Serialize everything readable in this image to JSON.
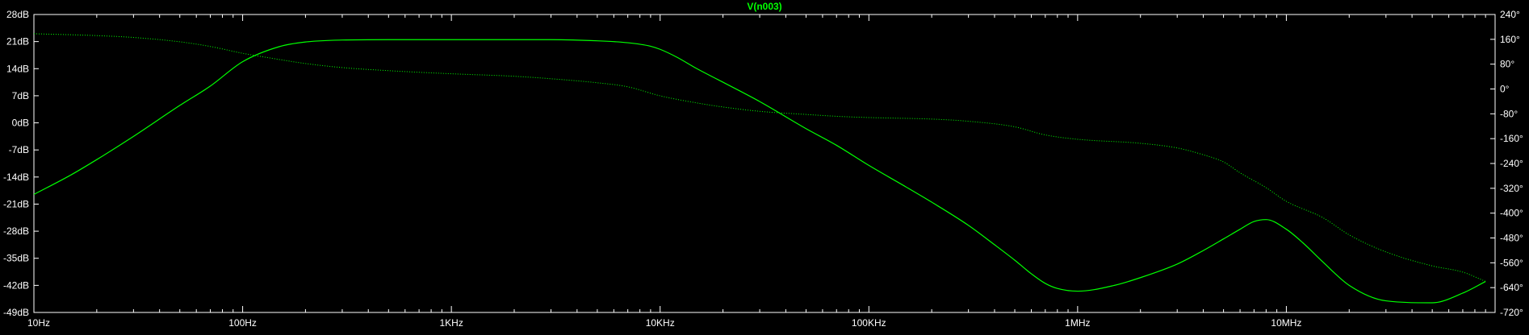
{
  "chart_data": {
    "type": "line",
    "title": "V(n003)",
    "x_scale": "log",
    "x_range_hz": [
      10,
      100000000
    ],
    "x_ticks": [
      {
        "value": 10,
        "label": "10Hz"
      },
      {
        "value": 100,
        "label": "100Hz"
      },
      {
        "value": 1000,
        "label": "1KHz"
      },
      {
        "value": 10000,
        "label": "10KHz"
      },
      {
        "value": 100000,
        "label": "100KHz"
      },
      {
        "value": 1000000,
        "label": "1MHz"
      },
      {
        "value": 10000000,
        "label": "10MHz"
      }
    ],
    "y_left": {
      "unit": "dB",
      "range": [
        -49,
        28
      ],
      "ticks": [
        {
          "value": 28,
          "label": "28dB"
        },
        {
          "value": 21,
          "label": "21dB"
        },
        {
          "value": 14,
          "label": "14dB"
        },
        {
          "value": 7,
          "label": "7dB"
        },
        {
          "value": 0,
          "label": "0dB"
        },
        {
          "value": -7,
          "label": "-7dB"
        },
        {
          "value": -14,
          "label": "-14dB"
        },
        {
          "value": -21,
          "label": "-21dB"
        },
        {
          "value": -28,
          "label": "-28dB"
        },
        {
          "value": -35,
          "label": "-35dB"
        },
        {
          "value": -42,
          "label": "-42dB"
        },
        {
          "value": -49,
          "label": "-49dB"
        }
      ]
    },
    "y_right": {
      "unit": "degrees",
      "range": [
        -720,
        240
      ],
      "ticks": [
        {
          "value": 240,
          "label": "240°"
        },
        {
          "value": 160,
          "label": "160°"
        },
        {
          "value": 80,
          "label": "80°"
        },
        {
          "value": 0,
          "label": "0°"
        },
        {
          "value": -80,
          "label": "-80°"
        },
        {
          "value": -160,
          "label": "-160°"
        },
        {
          "value": -240,
          "label": "-240°"
        },
        {
          "value": -320,
          "label": "-320°"
        },
        {
          "value": -400,
          "label": "-400°"
        },
        {
          "value": -480,
          "label": "-480°"
        },
        {
          "value": -560,
          "label": "-560°"
        },
        {
          "value": -640,
          "label": "-640°"
        },
        {
          "value": -720,
          "label": "-720°"
        }
      ]
    },
    "series": [
      {
        "style": "solid",
        "axis": "left",
        "x": [
          10,
          15,
          20,
          30,
          50,
          70,
          100,
          150,
          200,
          300,
          500,
          1000,
          2000,
          3000,
          5000,
          7000,
          9000,
          10000,
          12000,
          15000,
          20000,
          30000,
          50000,
          70000,
          100000,
          150000,
          200000,
          300000,
          400000,
          500000,
          600000,
          700000,
          800000,
          1000000,
          1500000,
          2000000,
          3000000,
          4000000,
          5000000,
          6000000,
          7000000,
          8000000,
          10000000,
          12000000,
          15000000,
          20000000,
          30000000,
          50000000,
          70000000,
          90000000
        ],
        "y": [
          -18.5,
          -13.5,
          -9.5,
          -3.5,
          4.5,
          9.5,
          15.8,
          19.7,
          20.9,
          21.4,
          21.5,
          21.5,
          21.5,
          21.5,
          21.2,
          20.7,
          19.8,
          19,
          17,
          14,
          10.5,
          5.5,
          -1.5,
          -5.8,
          -11,
          -16.5,
          -20.5,
          -26.5,
          -31.5,
          -35.5,
          -39,
          -41.5,
          -42.8,
          -43.5,
          -42,
          -40,
          -36.5,
          -33,
          -30,
          -27.5,
          -25.5,
          -25,
          -27.5,
          -31,
          -36,
          -42,
          -46,
          -46.5,
          -44,
          -41
        ]
      },
      {
        "style": "dotted",
        "axis": "right",
        "x": [
          10,
          20,
          30,
          50,
          70,
          100,
          150,
          200,
          300,
          500,
          1000,
          2000,
          3000,
          5000,
          7000,
          10000,
          15000,
          20000,
          30000,
          50000,
          70000,
          100000,
          200000,
          300000,
          500000,
          700000,
          1000000,
          2000000,
          3000000,
          4000000,
          5000000,
          6000000,
          8000000,
          10000000,
          15000000,
          20000000,
          30000000,
          50000000,
          70000000,
          90000000
        ],
        "y": [
          178,
          172,
          166,
          152,
          137,
          115,
          95,
          82,
          69,
          59,
          49,
          41,
          33,
          20,
          7,
          -22,
          -45,
          -58,
          -72,
          -82,
          -88,
          -92,
          -97,
          -104,
          -122,
          -148,
          -162,
          -175,
          -190,
          -212,
          -235,
          -270,
          -318,
          -362,
          -415,
          -470,
          -525,
          -570,
          -590,
          -620
        ]
      }
    ]
  }
}
